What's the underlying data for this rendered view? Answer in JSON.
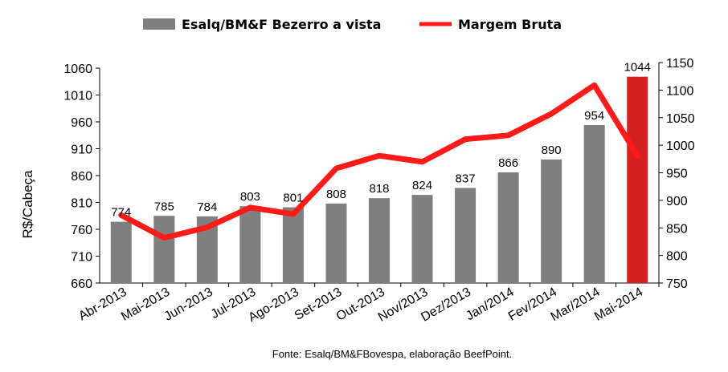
{
  "chart_data": {
    "type": "bar",
    "categories": [
      "Abr-2013",
      "Mai-2013",
      "Jun-2013",
      "Jul-2013",
      "Ago-2013",
      "Set-2013",
      "Out-2013",
      "Nov/2013",
      "Dez/2013",
      "Jan/2014",
      "Fev/2014",
      "Mar/2014",
      "Mai-2014"
    ],
    "series": [
      {
        "name": "Esalq/BM&F Bezerro a vista",
        "type": "bar",
        "axis": "left",
        "color": "#7f7f7f",
        "highlight_color": "#d42020",
        "highlight_index": 12,
        "values": [
          774,
          785,
          784,
          803,
          801,
          808,
          818,
          824,
          837,
          866,
          890,
          954,
          1044
        ]
      },
      {
        "name": "Margem Bruta",
        "type": "line",
        "axis": "right",
        "color": "#ff1a1a",
        "values": [
          873,
          832,
          851,
          887,
          875,
          958,
          981,
          970,
          1011,
          1018,
          1057,
          1109,
          981
        ]
      }
    ],
    "ylabel": "R$/Cabeça",
    "ylim": [
      660,
      1060
    ],
    "yticks": [
      660,
      710,
      760,
      810,
      860,
      910,
      960,
      1010,
      1060
    ],
    "y2lim": [
      750,
      1150
    ],
    "y2ticks": [
      750,
      800,
      850,
      900,
      950,
      1000,
      1050,
      1100,
      1150
    ],
    "legend_position": "top-center",
    "grid": false
  },
  "source_text": "Fonte: Esalq/BM&FBovespa, elaboração BeefPoint."
}
